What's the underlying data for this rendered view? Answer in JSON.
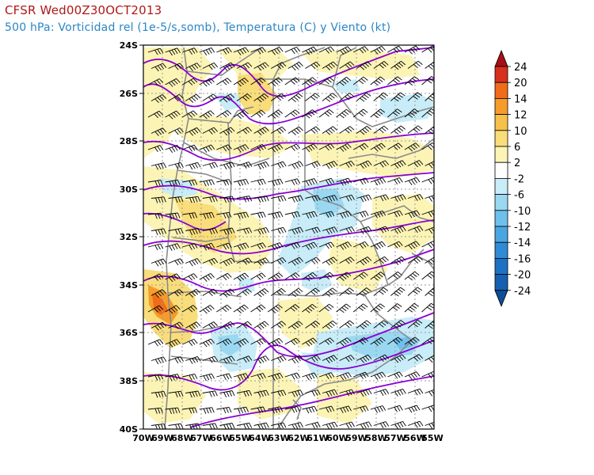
{
  "header": {
    "title": "CFSR Wed00Z30OCT2013",
    "subtitle": "500 hPa: Vorticidad rel (1e-5/s,somb), Temperatura (C) y Viento (kt)"
  },
  "colors": {
    "title": "#b01818",
    "subtitle": "#2a86c6",
    "isotherm": "#8a00d4",
    "borders": "#888888",
    "grid": "#9a9a9a"
  },
  "map": {
    "lat_labels": [
      "24S",
      "26S",
      "28S",
      "30S",
      "32S",
      "34S",
      "36S",
      "38S",
      "40S"
    ],
    "lon_labels": [
      "70W",
      "69W",
      "68W",
      "67W",
      "66W",
      "65W",
      "64W",
      "63W",
      "62W",
      "61W",
      "60W",
      "59W",
      "58W",
      "57W",
      "56W",
      "55W"
    ]
  },
  "colorbar": {
    "labels": [
      "24",
      "20",
      "14",
      "12",
      "10",
      "6",
      "2",
      "-2",
      "-6",
      "-10",
      "-12",
      "-14",
      "-16",
      "-20",
      "-24"
    ],
    "colors": [
      "#a50f15",
      "#d7301f",
      "#f06c1a",
      "#f59c2b",
      "#f7c04a",
      "#f9dd7a",
      "#fcf4b5",
      "#ffffff",
      "#c8ecf8",
      "#9ad8f2",
      "#6fc0ec",
      "#4aa6e3",
      "#2f8bd6",
      "#1e72c4",
      "#1560b0",
      "#0d4e98"
    ]
  }
}
